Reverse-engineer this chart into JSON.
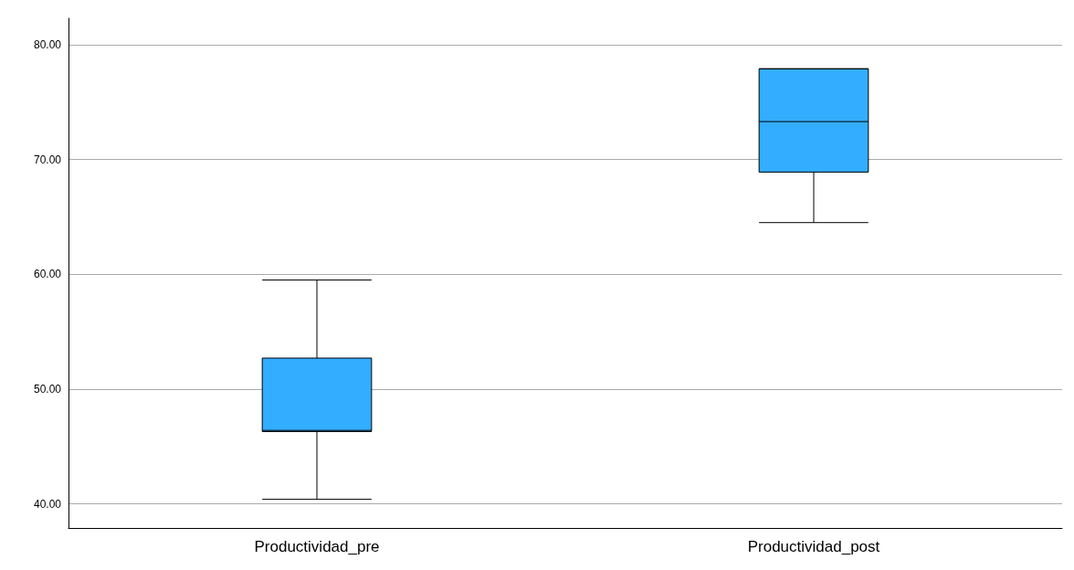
{
  "chart_data": {
    "type": "box",
    "categories": [
      "Productividad_pre",
      "Productividad_post"
    ],
    "boxes": [
      {
        "low": 40.4,
        "q1": 46.3,
        "median": 46.4,
        "q3": 52.7,
        "high": 59.5
      },
      {
        "low": 64.5,
        "q1": 68.9,
        "median": 73.3,
        "q3": 77.9,
        "high": 77.9
      }
    ],
    "color": "#33adff",
    "ylim": [
      37.9,
      82.3
    ],
    "yticks": [
      {
        "value": 40,
        "label": "40.00"
      },
      {
        "value": 50,
        "label": "50.00"
      },
      {
        "value": 60,
        "label": "60.00"
      },
      {
        "value": 70,
        "label": "70.00"
      },
      {
        "value": 80,
        "label": "80.00"
      }
    ],
    "grid": "y"
  }
}
